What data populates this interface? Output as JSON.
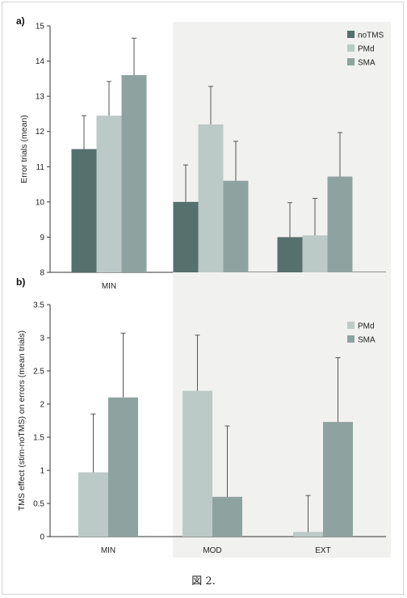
{
  "caption": "図 2.",
  "chart_data": [
    {
      "type": "bar",
      "panel_label": "a)",
      "ylabel": "Error trials (mean)",
      "xlabel": "",
      "categories": [
        "MIN",
        "MOD",
        "EXT"
      ],
      "ylim": [
        8,
        15
      ],
      "yticks": [
        8,
        9,
        10,
        11,
        12,
        13,
        14,
        15
      ],
      "grid": false,
      "legend_position": "top-right",
      "shaded_categories": [
        "MOD",
        "EXT"
      ],
      "series": [
        {
          "name": "noTMS",
          "color": "#55706d",
          "values": [
            11.5,
            10.0,
            9.0
          ],
          "errors": [
            0.95,
            1.05,
            0.98
          ]
        },
        {
          "name": "PMd",
          "color": "#bccac7",
          "values": [
            12.45,
            12.2,
            9.05
          ],
          "errors": [
            0.97,
            1.08,
            1.05
          ]
        },
        {
          "name": "SMA",
          "color": "#8ea39f",
          "values": [
            13.6,
            10.6,
            10.72
          ],
          "errors": [
            1.05,
            1.12,
            1.25
          ]
        }
      ]
    },
    {
      "type": "bar",
      "panel_label": "b)",
      "ylabel": "TMS effect (stim-noTMS) on errors (mean trials)",
      "xlabel": "",
      "categories": [
        "MIN",
        "MOD",
        "EXT"
      ],
      "ylim": [
        0,
        3.5
      ],
      "yticks": [
        0,
        0.5,
        1,
        1.5,
        2,
        2.5,
        3,
        3.5
      ],
      "grid": false,
      "legend_position": "top-right",
      "shaded_categories": [
        "MOD",
        "EXT"
      ],
      "series": [
        {
          "name": "PMd",
          "color": "#bccac7",
          "values": [
            0.97,
            2.2,
            0.07
          ],
          "errors": [
            0.88,
            0.84,
            0.55
          ]
        },
        {
          "name": "SMA",
          "color": "#8ea39f",
          "values": [
            2.1,
            0.6,
            1.73
          ],
          "errors": [
            0.97,
            1.07,
            0.97
          ]
        }
      ]
    }
  ]
}
